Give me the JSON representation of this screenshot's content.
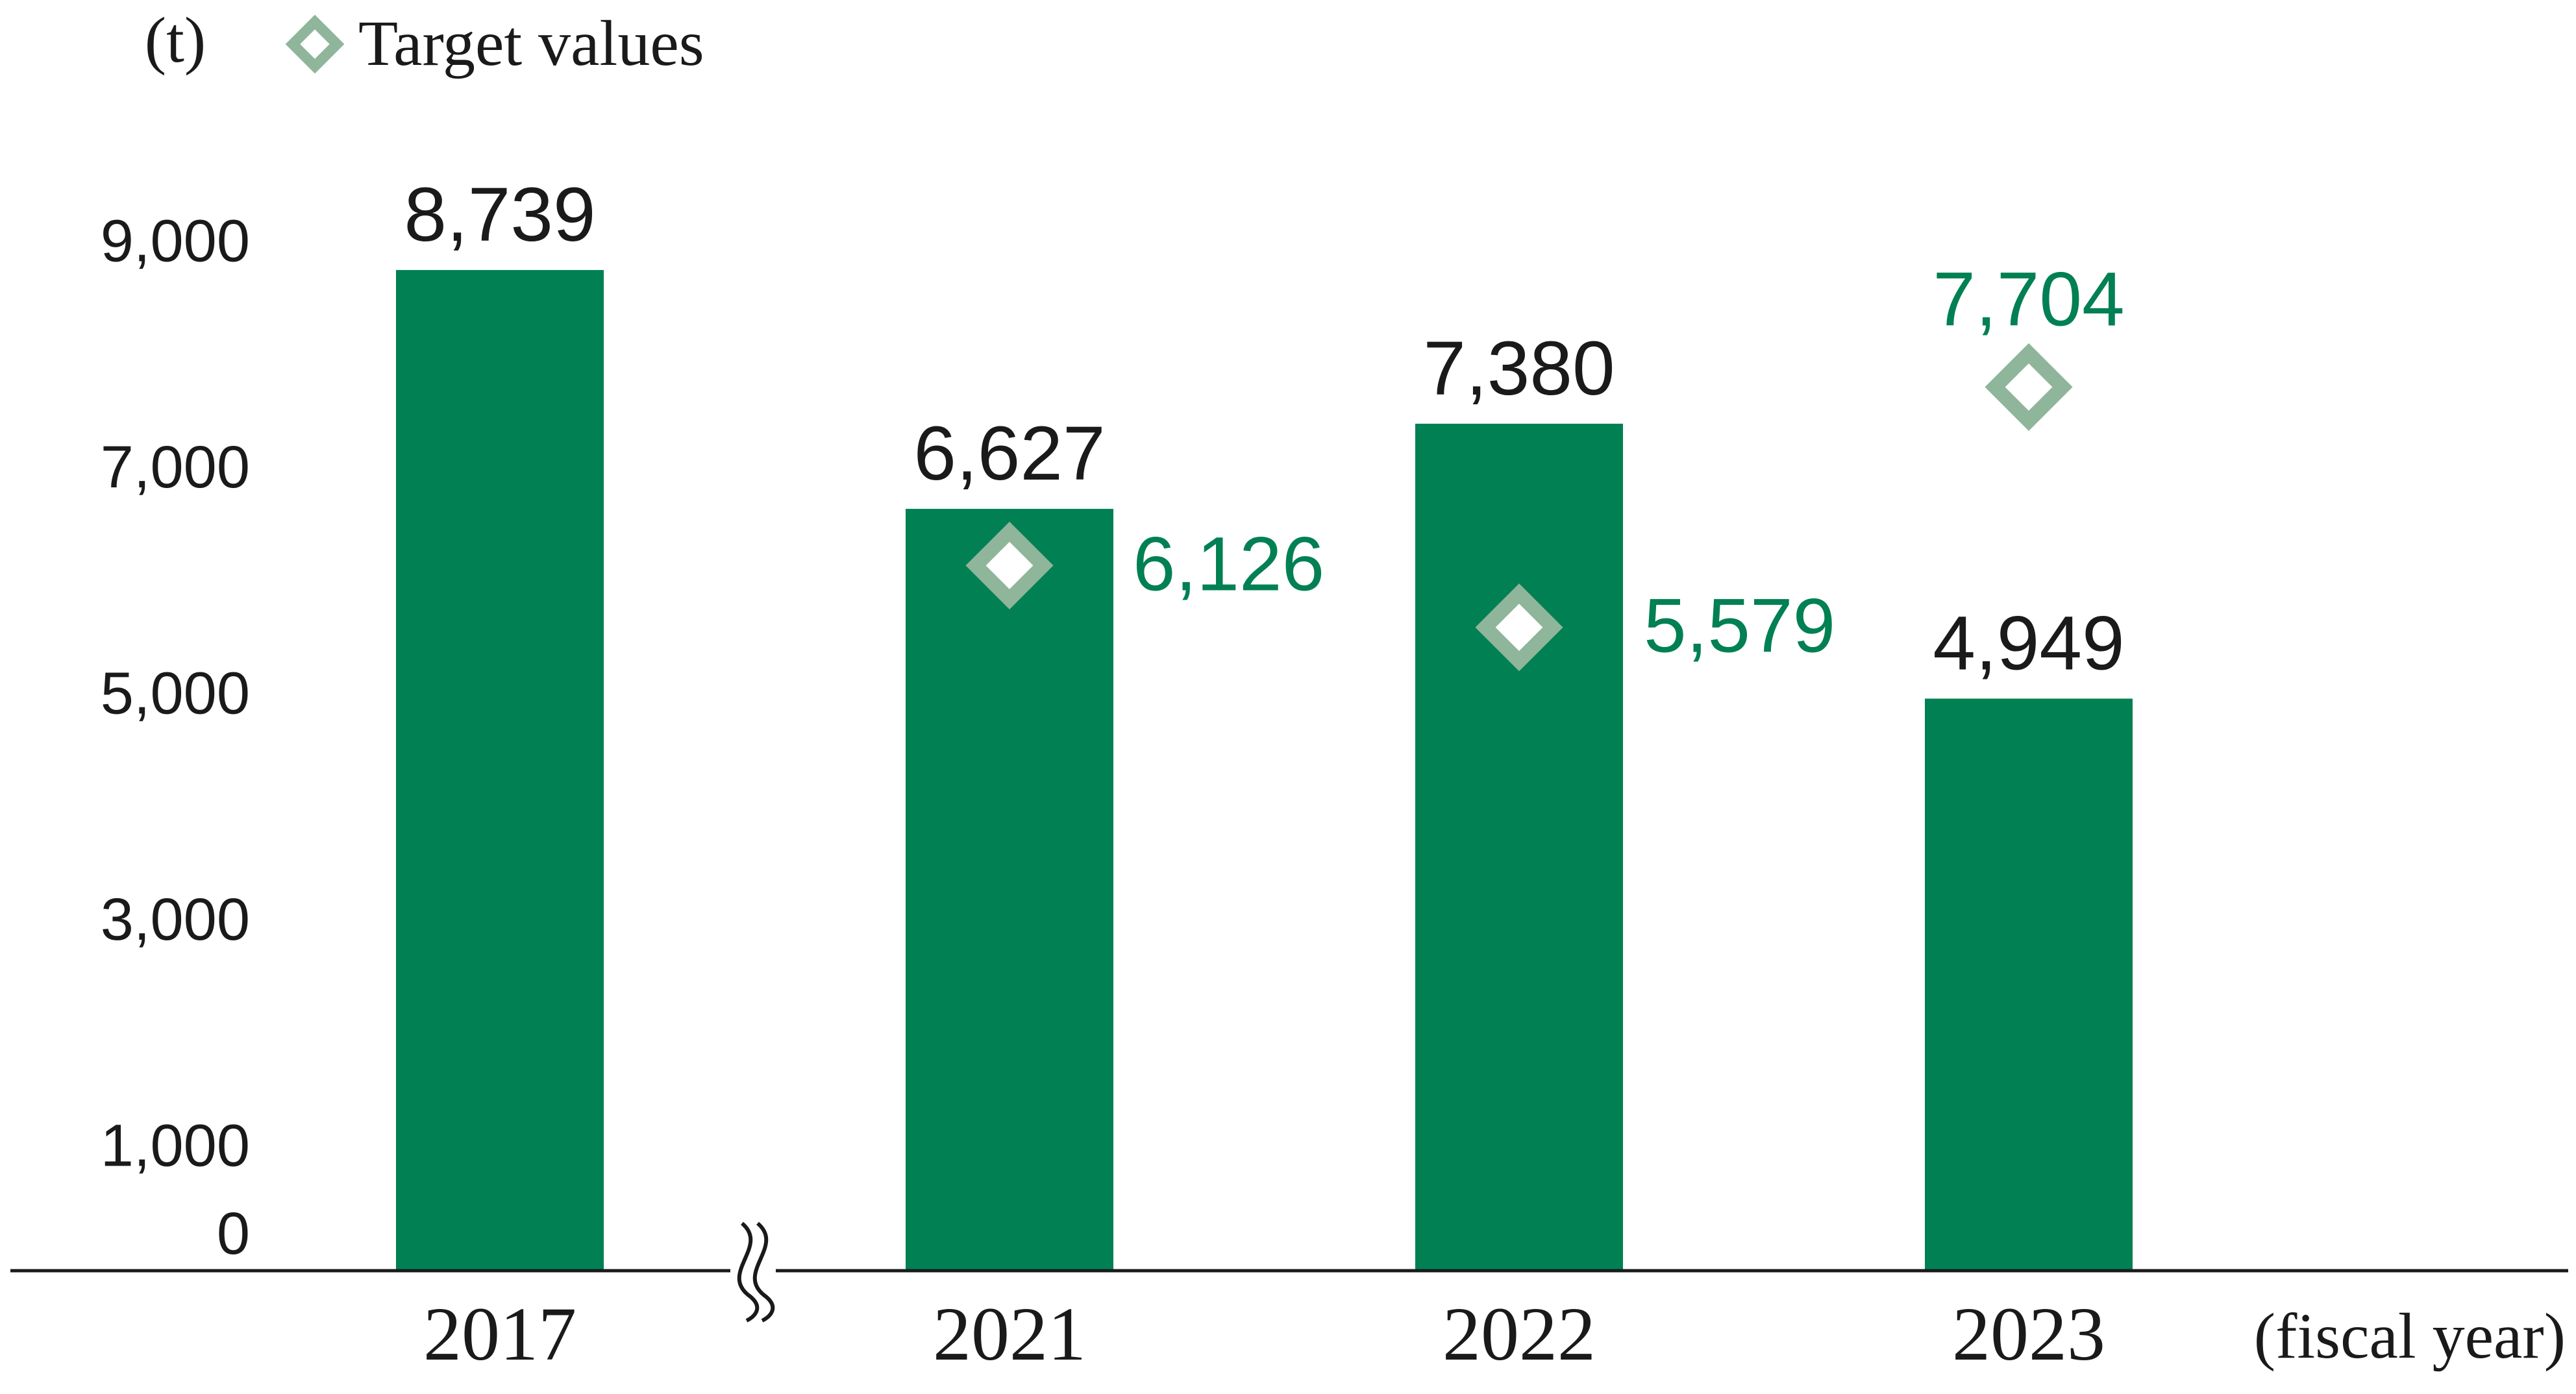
{
  "chart_data": {
    "type": "bar",
    "ylabel": "(t)",
    "xlabel": "(fiscal year)",
    "categories": [
      "2017",
      "2021",
      "2022",
      "2023"
    ],
    "series": [
      {
        "values": [
          8739,
          6627,
          7380,
          4949
        ],
        "color": "#008053"
      }
    ],
    "targets": {
      "name": "Target values",
      "values": [
        null,
        6126,
        5579,
        7704
      ],
      "color": "#8fb59a",
      "label_color": "#008053"
    },
    "value_labels": [
      "8,739",
      "6,627",
      "7,380",
      "4,949"
    ],
    "target_labels": [
      "",
      "6,126",
      "5,579",
      "7,704"
    ],
    "yticks": [
      0,
      1000,
      3000,
      5000,
      7000,
      9000
    ],
    "ytick_labels": [
      "0",
      "1,000",
      "3,000",
      "5,000",
      "7,000",
      "9,000"
    ],
    "axis_break": "between 2017 and 2021",
    "legend_position": "top-left",
    "grid": false
  }
}
